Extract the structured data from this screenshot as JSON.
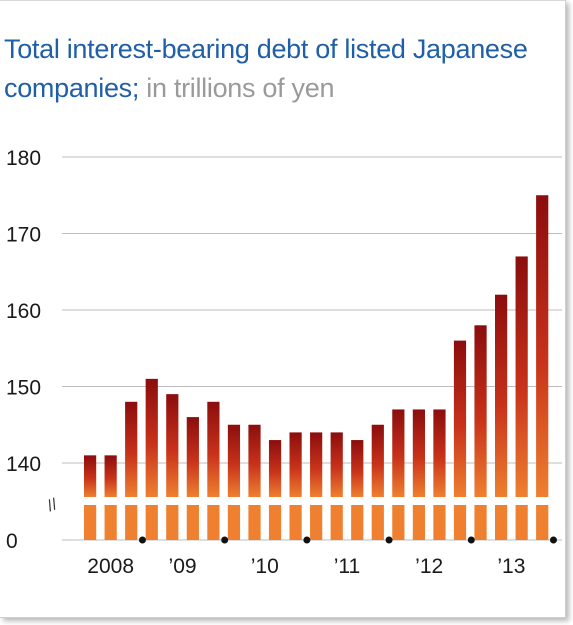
{
  "chart_data": {
    "type": "bar",
    "title": "Total interest-bearing debt of listed Japanese companies;",
    "unit_label": "in trillions of yen",
    "xlabel": "",
    "ylabel": "",
    "y_ticks": [
      "0",
      "140",
      "150",
      "160",
      "170",
      "180"
    ],
    "y_break_symbol": "//",
    "ylim": [
      135,
      180
    ],
    "axis_break": [
      0,
      135
    ],
    "x_tick_labels": [
      "2008",
      "’09",
      "’10",
      "’11",
      "’12",
      "’13"
    ],
    "values": [
      141,
      141,
      148,
      151,
      149,
      146,
      148,
      145,
      145,
      143,
      144,
      144,
      144,
      143,
      145,
      147,
      147,
      147,
      156,
      158,
      162,
      167,
      175
    ],
    "grid": true,
    "colors": {
      "bar_top": "#8b0d0d",
      "bar_mid": "#c8321a",
      "bar_bottom": "#ee8030",
      "title": "#1f5fa8",
      "unit": "#9a9a9a",
      "grid": "#bdbdbd"
    }
  }
}
